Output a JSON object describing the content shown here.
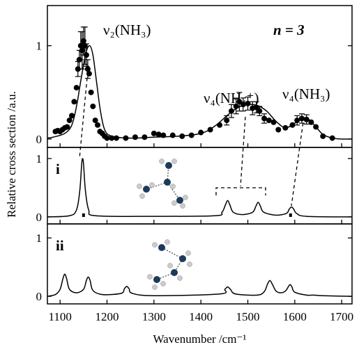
{
  "chart_data": [
    {
      "type": "scatter",
      "color": "#000000",
      "ylabel": "Relative cross section /a.u.",
      "annotations": [
        "ν₂(NH₃)",
        "ν₄(NH₄⁺)",
        "ν₄(NH₃)",
        "n = 3"
      ],
      "xlim": [
        1073,
        1722
      ],
      "ylim": [
        -0.09,
        1.43
      ],
      "yticks": [
        0,
        1
      ],
      "x": [
        1090,
        1095,
        1100,
        1105,
        1110,
        1115,
        1120,
        1125,
        1130,
        1135,
        1138,
        1141,
        1144,
        1147,
        1150,
        1153,
        1156,
        1159,
        1162,
        1166,
        1170,
        1175,
        1180,
        1185,
        1190,
        1195,
        1200,
        1210,
        1220,
        1240,
        1260,
        1280,
        1300,
        1310,
        1320,
        1340,
        1360,
        1380,
        1400,
        1420,
        1440,
        1455,
        1465,
        1475,
        1482,
        1490,
        1500,
        1510,
        1518,
        1525,
        1535,
        1545,
        1555,
        1565,
        1580,
        1595,
        1605,
        1615,
        1625,
        1635,
        1645,
        1660,
        1680
      ],
      "values": [
        0.08,
        0.09,
        0.08,
        0.1,
        0.12,
        0.13,
        0.2,
        0.25,
        0.4,
        0.55,
        0.75,
        0.85,
        1.0,
        0.95,
        1.05,
        1.0,
        0.9,
        0.75,
        0.7,
        0.5,
        0.35,
        0.2,
        0.15,
        0.08,
        0.06,
        0.03,
        0.01,
        0.01,
        0.01,
        0.01,
        0.02,
        0.02,
        0.06,
        0.05,
        0.04,
        0.04,
        0.03,
        0.04,
        0.07,
        0.1,
        0.15,
        0.2,
        0.3,
        0.35,
        0.4,
        0.37,
        0.38,
        0.33,
        0.34,
        0.3,
        0.22,
        0.2,
        0.18,
        0.1,
        0.12,
        0.15,
        0.2,
        0.22,
        0.21,
        0.18,
        0.13,
        0.03,
        0.01
      ],
      "errors": [
        null,
        null,
        null,
        null,
        null,
        null,
        null,
        null,
        null,
        null,
        0.08,
        0.1,
        0.15,
        0.2,
        0.15,
        0.2,
        0.12,
        0.1,
        null,
        null,
        null,
        null,
        null,
        null,
        null,
        null,
        null,
        null,
        null,
        null,
        null,
        null,
        null,
        null,
        null,
        null,
        null,
        null,
        null,
        null,
        null,
        0.05,
        0.07,
        0.08,
        0.1,
        0.07,
        0.07,
        0.07,
        0.06,
        0.05,
        0.05,
        null,
        null,
        null,
        null,
        null,
        0.05,
        0.05,
        0.05,
        null,
        null,
        null,
        null
      ],
      "fit": {
        "x": [
          1073,
          1085,
          1110,
          1125,
          1135,
          1145,
          1155,
          1163,
          1170,
          1178,
          1186,
          1195,
          1210,
          1250,
          1300,
          1350,
          1400,
          1430,
          1460,
          1480,
          1500,
          1520,
          1540,
          1560,
          1580,
          1600,
          1615,
          1630,
          1645,
          1660,
          1680,
          1700,
          1722
        ],
        "values": [
          0.01,
          0.02,
          0.06,
          0.15,
          0.35,
          0.65,
          0.92,
          1.0,
          0.9,
          0.6,
          0.3,
          0.1,
          0.03,
          0.01,
          0.02,
          0.03,
          0.06,
          0.14,
          0.27,
          0.34,
          0.37,
          0.36,
          0.3,
          0.19,
          0.12,
          0.17,
          0.22,
          0.21,
          0.13,
          0.05,
          0.01,
          0,
          0
        ]
      }
    },
    {
      "type": "line",
      "color": "#000000",
      "label": "i",
      "xlim": [
        1073,
        1722
      ],
      "ylim": [
        -0.12,
        1.19
      ],
      "yticks": [
        0,
        1
      ],
      "x": [
        1073,
        1120,
        1135,
        1142,
        1146,
        1148,
        1150,
        1154,
        1161,
        1176,
        1300,
        1430,
        1445,
        1452,
        1457,
        1462,
        1469,
        1488,
        1510,
        1517,
        1522,
        1527,
        1534,
        1560,
        1582,
        1588,
        1593,
        1598,
        1604,
        1625,
        1722
      ],
      "values": [
        0,
        0.02,
        0.12,
        0.45,
        0.9,
        1.0,
        0.9,
        0.45,
        0.12,
        0.02,
        0.01,
        0.02,
        0.08,
        0.2,
        0.28,
        0.2,
        0.08,
        0.04,
        0.08,
        0.18,
        0.25,
        0.18,
        0.08,
        0.03,
        0.06,
        0.13,
        0.17,
        0.13,
        0.06,
        0.01,
        0
      ],
      "sticks": {
        "x": [
          1150,
          1591
        ],
        "values": [
          0.06,
          0.06
        ]
      }
    },
    {
      "type": "line",
      "color": "#000000",
      "label": "ii",
      "xlabel": "Wavenumber /cm⁻¹",
      "xlim": [
        1073,
        1722
      ],
      "xticks": [
        1100,
        1200,
        1300,
        1400,
        1500,
        1600,
        1700
      ],
      "ylim": [
        -0.13,
        1.24
      ],
      "yticks": [
        0,
        1
      ],
      "x": [
        1073,
        1090,
        1100,
        1106,
        1110,
        1114,
        1120,
        1135,
        1150,
        1156,
        1160,
        1164,
        1170,
        1190,
        1230,
        1237,
        1242,
        1247,
        1254,
        1300,
        1440,
        1451,
        1457,
        1463,
        1474,
        1520,
        1535,
        1542,
        1547,
        1552,
        1560,
        1570,
        1580,
        1586,
        1590,
        1594,
        1600,
        1625,
        1640,
        1660,
        1722
      ],
      "values": [
        0,
        0.03,
        0.12,
        0.3,
        0.38,
        0.3,
        0.12,
        0.06,
        0.12,
        0.27,
        0.33,
        0.27,
        0.1,
        0.03,
        0.05,
        0.13,
        0.17,
        0.13,
        0.05,
        0.01,
        0.04,
        0.12,
        0.16,
        0.12,
        0.04,
        0.02,
        0.08,
        0.21,
        0.27,
        0.21,
        0.09,
        0.06,
        0.09,
        0.16,
        0.2,
        0.16,
        0.07,
        0.02,
        0.02,
        0.01,
        0
      ]
    }
  ]
}
